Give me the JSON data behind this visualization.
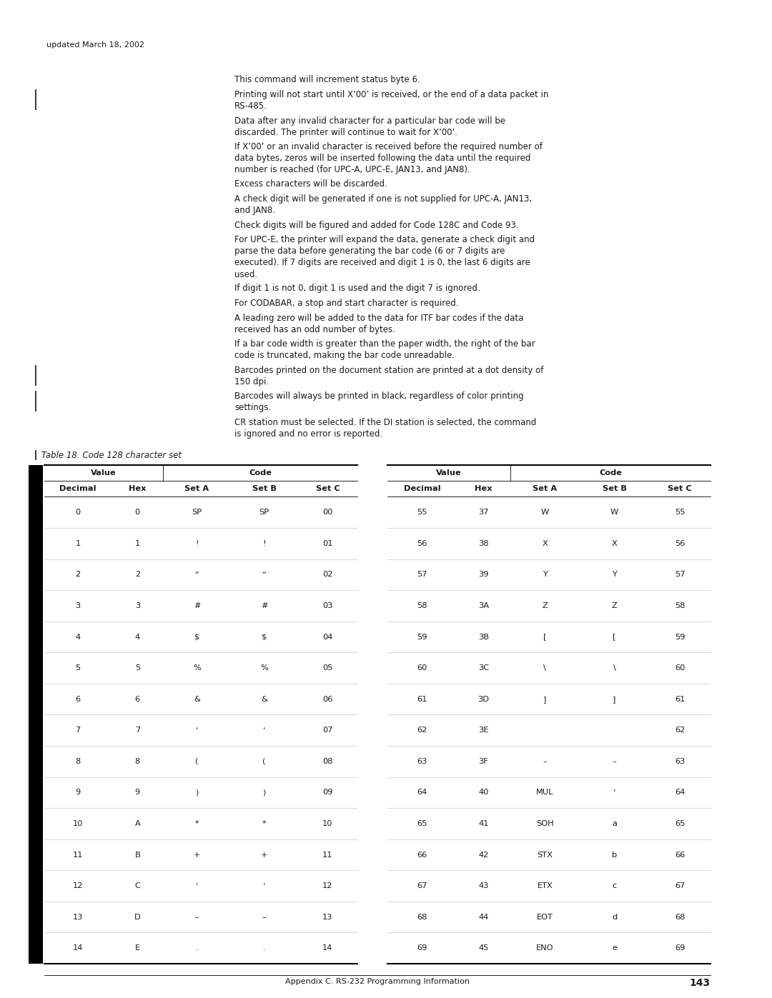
{
  "page_width": 10.8,
  "page_height": 13.97,
  "background_color": "#ffffff",
  "text_color": "#1a1a1a",
  "header_text": "updated March 18, 2002",
  "body_paragraphs": [
    {
      "text": "This command will increment status byte 6.",
      "has_bar": false,
      "lines": 1
    },
    {
      "text": "Printing will not start until X’00’ is received, or the end of a data packet in\nRS-485.",
      "has_bar": true,
      "lines": 2
    },
    {
      "text": "Data after any invalid character for a particular bar code will be\ndiscarded. The printer will continue to wait for X’00’.",
      "has_bar": false,
      "lines": 2
    },
    {
      "text": "If X’00’ or an invalid character is received before the required number of\ndata bytes, zeros will be inserted following the data until the required\nnumber is reached (for UPC-A, UPC-E, JAN13, and JAN8).",
      "has_bar": false,
      "lines": 3
    },
    {
      "text": "Excess characters will be discarded.",
      "has_bar": false,
      "lines": 1
    },
    {
      "text": "A check digit will be generated if one is not supplied for UPC-A, JAN13,\nand JAN8.",
      "has_bar": false,
      "lines": 2
    },
    {
      "text": "Check digits will be figured and added for Code 128C and Code 93.",
      "has_bar": false,
      "lines": 1
    },
    {
      "text": "For UPC-E, the printer will expand the data, generate a check digit and\nparse the data before generating the bar code (6 or 7 digits are\nexecuted). If 7 digits are received and digit 1 is 0, the last 6 digits are\nused.",
      "has_bar": false,
      "lines": 4
    },
    {
      "text": "If digit 1 is not 0, digit 1 is used and the digit 7 is ignored.",
      "has_bar": false,
      "lines": 1
    },
    {
      "text": "For CODABAR, a stop and start character is required.",
      "has_bar": false,
      "lines": 1
    },
    {
      "text": "A leading zero will be added to the data for ITF bar codes if the data\nreceived has an odd number of bytes.",
      "has_bar": false,
      "lines": 2
    },
    {
      "text": "If a bar code width is greater than the paper width, the right of the bar\ncode is truncated, making the bar code unreadable.",
      "has_bar": false,
      "lines": 2
    },
    {
      "text": "Barcodes printed on the document station are printed at a dot density of\n150 dpi.",
      "has_bar": true,
      "lines": 2
    },
    {
      "text": "Barcodes will always be printed in black, regardless of color printing\nsettings.",
      "has_bar": true,
      "lines": 2
    },
    {
      "text": "CR station must be selected. If the DI station is selected, the command\nis ignored and no error is reported.",
      "has_bar": false,
      "lines": 2
    }
  ],
  "table_title": "Table 18. Code 128 character set",
  "col_headers": [
    "Decimal",
    "Hex",
    "Set A",
    "Set B",
    "Set C"
  ],
  "left_data": [
    [
      "0",
      "0",
      "SP",
      "SP",
      "00"
    ],
    [
      "1",
      "1",
      "!",
      "!",
      "01"
    ],
    [
      "2",
      "2",
      "“",
      "“",
      "02"
    ],
    [
      "3",
      "3",
      "#",
      "#",
      "03"
    ],
    [
      "4",
      "4",
      "$",
      "$",
      "04"
    ],
    [
      "5",
      "5",
      "%",
      "%",
      "05"
    ],
    [
      "6",
      "6",
      "&",
      "&",
      "06"
    ],
    [
      "7",
      "7",
      "‘",
      "‘",
      "07"
    ],
    [
      "8",
      "8",
      "(",
      "(",
      "08"
    ],
    [
      "9",
      "9",
      ")",
      ")",
      "09"
    ],
    [
      "10",
      "A",
      "*",
      "*",
      "10"
    ],
    [
      "11",
      "B",
      "+",
      "+",
      "11"
    ],
    [
      "12",
      "C",
      "‘",
      "‘",
      "12"
    ],
    [
      "13",
      "D",
      "–",
      "–",
      "13"
    ],
    [
      "14",
      "E",
      ".",
      ".",
      "14"
    ]
  ],
  "right_data": [
    [
      "55",
      "37",
      "W",
      "W",
      "55"
    ],
    [
      "56",
      "38",
      "X",
      "X",
      "56"
    ],
    [
      "57",
      "39",
      "Y",
      "Y",
      "57"
    ],
    [
      "58",
      "3A",
      "Z",
      "Z",
      "58"
    ],
    [
      "59",
      "3B",
      "[",
      "[",
      "59"
    ],
    [
      "60",
      "3C",
      "\\",
      "\\",
      "60"
    ],
    [
      "61",
      "3D",
      "]",
      "]",
      "61"
    ],
    [
      "62",
      "3E",
      "",
      "",
      "62"
    ],
    [
      "63",
      "3F",
      "–",
      "–",
      "63"
    ],
    [
      "64",
      "40",
      "MUL",
      "‘",
      "64"
    ],
    [
      "65",
      "41",
      "SOH",
      "a",
      "65"
    ],
    [
      "66",
      "42",
      "STX",
      "b",
      "66"
    ],
    [
      "67",
      "43",
      "ETX",
      "c",
      "67"
    ],
    [
      "68",
      "44",
      "EOT",
      "d",
      "68"
    ],
    [
      "69",
      "45",
      "ENO",
      "e",
      "69"
    ]
  ],
  "footer_text": "Appendix C. RS-232 Programming Information",
  "footer_page": "143"
}
